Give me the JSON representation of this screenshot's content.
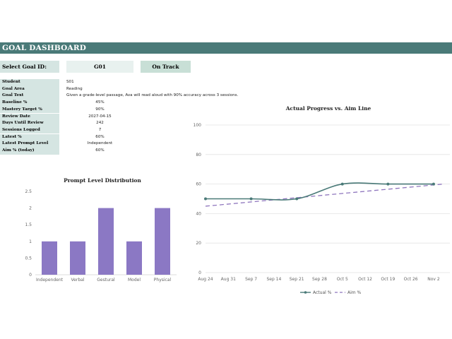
{
  "banner": {
    "title": "GOAL DASHBOARD"
  },
  "selector": {
    "label": "Select Goal ID:",
    "goal_id": "G01",
    "status": "On Track"
  },
  "info": [
    {
      "key": "Student",
      "value": "S01"
    },
    {
      "key": "Goal Area",
      "value": "Reading"
    },
    {
      "key": "Goal Text",
      "value": "Given a grade-level passage, Ava will read aloud with 90% accuracy across 3 sessions."
    },
    {
      "key": "Baseline %",
      "value": "45%"
    },
    {
      "key": "Mastery Target %",
      "value": "90%"
    },
    {
      "key": "Review Date",
      "value": "2027-04-15"
    },
    {
      "key": "Days Until Review",
      "value": "242"
    },
    {
      "key": "Sessions Logged",
      "value": "7"
    },
    {
      "key": "Latest %",
      "value": "60%"
    },
    {
      "key": "Latest Prompt Level",
      "value": "Independent"
    },
    {
      "key": "Aim % (today)",
      "value": "60%"
    }
  ],
  "chart_data": [
    {
      "type": "bar",
      "title": "Prompt Level Distribution",
      "categories": [
        "Independent",
        "Verbal",
        "Gestural",
        "Model",
        "Physical"
      ],
      "values": [
        1,
        1,
        2,
        1,
        2
      ],
      "ylim": [
        0,
        2.5
      ],
      "yticks": [
        "0",
        "0.5",
        "1",
        "1.5",
        "2",
        "2.5"
      ],
      "grid": false,
      "color": "#8b78c4"
    },
    {
      "type": "line",
      "title": "Actual Progress vs. Aim Line",
      "x_ticks": [
        "Aug 24",
        "Aug 31",
        "Sep 7",
        "Sep 14",
        "Sep 21",
        "Sep 28",
        "Oct 5",
        "Oct 12",
        "Oct 19",
        "Oct 26",
        "Nov 2"
      ],
      "ylim": [
        0,
        100
      ],
      "yticks": [
        "0",
        "20",
        "40",
        "60",
        "80",
        "100"
      ],
      "grid": true,
      "legend": "bottom",
      "series": [
        {
          "name": "Actual %",
          "color": "#4a7a78",
          "style": "solid-smooth",
          "points": [
            [
              "Aug 24",
              50
            ],
            [
              "Sep 7",
              50
            ],
            [
              "Sep 21",
              50
            ],
            [
              "Oct 5",
              60
            ],
            [
              "Oct 19",
              60
            ],
            [
              "Nov 2",
              60
            ]
          ]
        },
        {
          "name": "Aim %",
          "color": "#8e75bd",
          "style": "dashed",
          "points": [
            [
              "Aug 24",
              45
            ],
            [
              "Nov 5",
              60
            ]
          ]
        }
      ]
    }
  ]
}
